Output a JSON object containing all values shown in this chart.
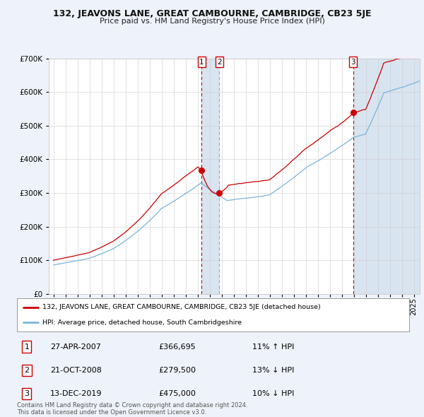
{
  "title": "132, JEAVONS LANE, GREAT CAMBOURNE, CAMBRIDGE, CB23 5JE",
  "subtitle": "Price paid vs. HM Land Registry's House Price Index (HPI)",
  "legend_line1": "132, JEAVONS LANE, GREAT CAMBOURNE, CAMBRIDGE, CB23 5JE (detached house)",
  "legend_line2": "HPI: Average price, detached house, South Cambridgeshire",
  "footer1": "Contains HM Land Registry data © Crown copyright and database right 2024.",
  "footer2": "This data is licensed under the Open Government Licence v3.0.",
  "transactions": [
    {
      "id": 1,
      "date": "27-APR-2007",
      "price": 366695,
      "pct": "11%",
      "dir": "↑",
      "date_val": 2007.32
    },
    {
      "id": 2,
      "date": "21-OCT-2008",
      "price": 279500,
      "pct": "13%",
      "dir": "↓",
      "date_val": 2008.8
    },
    {
      "id": 3,
      "date": "13-DEC-2019",
      "price": 475000,
      "pct": "10%",
      "dir": "↓",
      "date_val": 2019.95
    }
  ],
  "hpi_color": "#7ab4d8",
  "price_color": "#cc0000",
  "bg_color": "#eef2fa",
  "plot_bg": "#ffffff",
  "grid_color": "#cccccc",
  "shade_color": "#d8e4f0",
  "ylim": [
    0,
    700000
  ],
  "yticks": [
    0,
    100000,
    200000,
    300000,
    400000,
    500000,
    600000,
    700000
  ],
  "xlim_start": 1994.6,
  "xlim_end": 2025.5,
  "xticks": [
    1995,
    1996,
    1997,
    1998,
    1999,
    2000,
    2001,
    2002,
    2003,
    2004,
    2005,
    2006,
    2007,
    2008,
    2009,
    2010,
    2011,
    2012,
    2013,
    2014,
    2015,
    2016,
    2017,
    2018,
    2019,
    2020,
    2021,
    2022,
    2023,
    2024,
    2025
  ]
}
